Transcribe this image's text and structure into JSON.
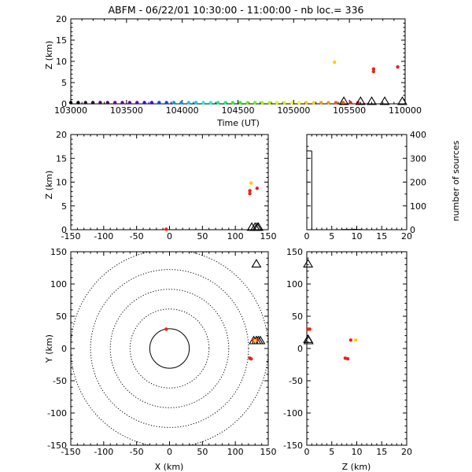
{
  "title": "ABFM - 06/22/01 10:30:00 - 11:00:00 - nb loc.=     336",
  "panels": {
    "time_height": {
      "xlabel": "Time (UT)",
      "ylabel": "Z (km)",
      "xticks": [
        "103000",
        "103500",
        "104000",
        "104500",
        "105000",
        "105500",
        "110000"
      ],
      "yticks": [
        "0",
        "5",
        "10",
        "15",
        "20"
      ]
    },
    "xz": {
      "ylabel": "Z (km)",
      "xticks": [
        "-150",
        "-100",
        "-50",
        "0",
        "50",
        "100",
        "150"
      ],
      "yticks": [
        "0",
        "5",
        "10",
        "15",
        "20"
      ]
    },
    "hist": {
      "ylabel": "number of sources",
      "xticks": [
        "0",
        "5",
        "10",
        "15",
        "20"
      ],
      "yticks": [
        "0",
        "100",
        "200",
        "300",
        "400"
      ]
    },
    "xy": {
      "xlabel": "X (km)",
      "ylabel": "Y (km)",
      "xticks": [
        "-150",
        "-100",
        "-50",
        "0",
        "50",
        "100",
        "150"
      ],
      "yticks": [
        "-150",
        "-100",
        "-50",
        "0",
        "50",
        "100",
        "150"
      ]
    },
    "zy": {
      "xlabel": "Z (km)",
      "xticks": [
        "0",
        "5",
        "10",
        "15",
        "20"
      ],
      "yticks": [
        "-150",
        "-100",
        "-50",
        "0",
        "50",
        "100",
        "150"
      ]
    }
  },
  "colors": {
    "red": "#e8231b",
    "orange": "#ff9900",
    "yellow": "#ffcc00",
    "black": "#000000",
    "colorbar": [
      "#000000",
      "#2a0030",
      "#4a0060",
      "#6a0090",
      "#5a00c0",
      "#2a00ff",
      "#0040ff",
      "#0090ff",
      "#00d0ff",
      "#00ffd0",
      "#00ff80",
      "#20ff20",
      "#60ff00",
      "#a0ff00",
      "#d0ff00",
      "#ffff00",
      "#ffd000",
      "#ff9900",
      "#ff5500",
      "#e8231b"
    ]
  },
  "chart_data": [
    {
      "name": "time-height",
      "type": "scatter",
      "xlabel": "Time (UT)",
      "ylabel": "Z (km)",
      "xlim": [
        "10:30:00",
        "11:00:00"
      ],
      "ylim": [
        0,
        20
      ],
      "points": [
        {
          "t": "10:53:40",
          "z": 9.8,
          "color": "yellow"
        },
        {
          "t": "10:57:10",
          "z": 8.2,
          "color": "red"
        },
        {
          "t": "10:57:10",
          "z": 7.6,
          "color": "red"
        },
        {
          "t": "10:59:20",
          "z": 8.7,
          "color": "red"
        }
      ],
      "stations": [
        "10:54:30",
        "10:56:00",
        "10:57:00",
        "10:58:10",
        "10:59:45"
      ]
    },
    {
      "name": "x-z",
      "type": "scatter",
      "xlabel": "",
      "ylabel": "Z (km)",
      "xlim": [
        -150,
        150
      ],
      "ylim": [
        0,
        20
      ],
      "points": [
        {
          "x": -5,
          "z": 0.1,
          "color": "red"
        },
        {
          "x": 124,
          "z": 9.8,
          "color": "yellow"
        },
        {
          "x": 122,
          "z": 8.2,
          "color": "red"
        },
        {
          "x": 122,
          "z": 7.6,
          "color": "red"
        },
        {
          "x": 133,
          "z": 8.7,
          "color": "red"
        }
      ],
      "stations": [
        125,
        130,
        133,
        135
      ]
    },
    {
      "name": "histogram",
      "type": "bar",
      "ylabel": "number of sources",
      "xlim": [
        0,
        20
      ],
      "ylim": [
        0,
        400
      ],
      "x": [
        0,
        1,
        2,
        3,
        4,
        5,
        6,
        7,
        8,
        9,
        10,
        11,
        12,
        13,
        14,
        15,
        16,
        17,
        18,
        19
      ],
      "values": [
        331,
        0,
        0,
        0,
        0,
        0,
        0,
        1,
        1,
        2,
        1,
        0,
        0,
        0,
        0,
        0,
        0,
        0,
        0,
        0
      ]
    },
    {
      "name": "x-y",
      "type": "scatter",
      "xlabel": "X (km)",
      "ylabel": "Y (km)",
      "xlim": [
        -150,
        150
      ],
      "ylim": [
        -150,
        150
      ],
      "range_rings_km": [
        30,
        60,
        90,
        120,
        150
      ],
      "points": [
        {
          "x": -5,
          "y": 30,
          "color": "red"
        },
        {
          "x": 122,
          "y": -15,
          "color": "red"
        },
        {
          "x": 124,
          "y": -16,
          "color": "red"
        },
        {
          "x": 127,
          "y": 13,
          "color": "red"
        },
        {
          "x": 133,
          "y": 13,
          "color": "red"
        },
        {
          "x": 130,
          "y": 12,
          "color": "yellow"
        }
      ],
      "stations": [
        [
          132,
          131
        ],
        [
          128,
          12
        ],
        [
          132,
          12
        ],
        [
          135,
          12
        ],
        [
          138,
          12
        ]
      ]
    },
    {
      "name": "z-y",
      "type": "scatter",
      "xlabel": "Z (km)",
      "ylim": [
        -150,
        150
      ],
      "xlim": [
        0,
        20
      ],
      "points": [
        {
          "z": 0.2,
          "y": 30,
          "color": "red"
        },
        {
          "z": 0.6,
          "y": 30,
          "color": "red"
        },
        {
          "z": 8.8,
          "y": 13,
          "color": "red"
        },
        {
          "z": 9.8,
          "y": 13,
          "color": "yellow"
        },
        {
          "z": 7.7,
          "y": -15,
          "color": "red"
        },
        {
          "z": 8.2,
          "y": -16,
          "color": "red"
        }
      ],
      "stations": [
        [
          0.1,
          131
        ],
        [
          0.1,
          14
        ],
        [
          0.2,
          12
        ]
      ]
    }
  ]
}
